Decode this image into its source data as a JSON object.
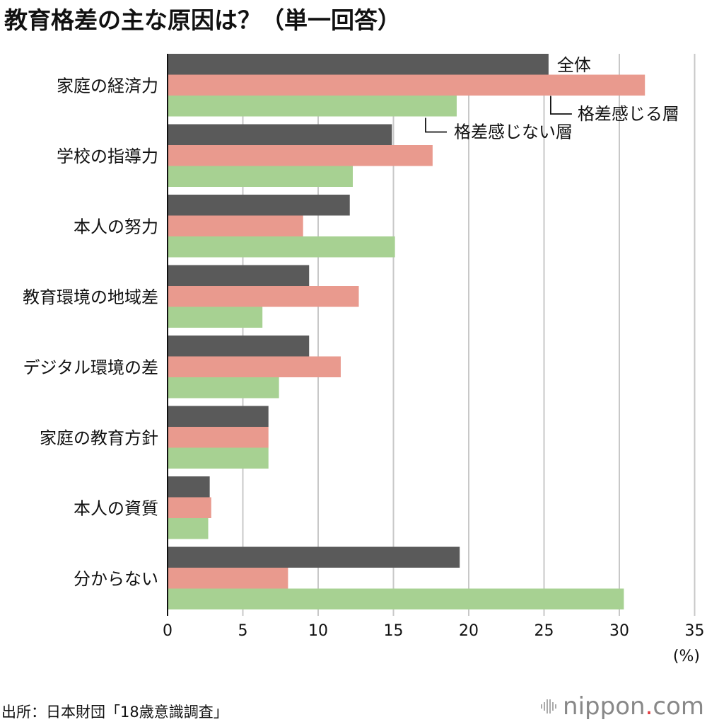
{
  "title": "教育格差の主な原因は？（単一回答）",
  "source": "出所：日本財団「18歳意識調査」",
  "logo": {
    "main": "nippon",
    "dot": ".",
    "com": "com",
    "icon": "sound-wave-icon"
  },
  "colors": {
    "overall": "#5a5a5a",
    "feel_gap": "#e99a8e",
    "no_gap": "#a7d192",
    "grid": "#c8c8c8",
    "axis": "#111111"
  },
  "chart_data": {
    "type": "bar",
    "orientation": "horizontal",
    "categories": [
      "家庭の経済力",
      "学校の指導力",
      "本人の努力",
      "教育環境の地域差",
      "デジタル環境の差",
      "家庭の教育方針",
      "本人の資質",
      "分からない"
    ],
    "series": [
      {
        "name": "全体",
        "values": [
          25.3,
          14.9,
          12.1,
          9.4,
          9.4,
          6.7,
          2.8,
          19.4
        ]
      },
      {
        "name": "格差感じる層",
        "values": [
          31.7,
          17.6,
          9.0,
          12.7,
          11.5,
          6.7,
          2.9,
          8.0
        ]
      },
      {
        "name": "格差感じない層",
        "values": [
          19.2,
          12.3,
          15.1,
          6.3,
          7.4,
          6.7,
          2.7,
          30.3
        ]
      }
    ],
    "xlim": [
      0,
      35
    ],
    "xticks": [
      "0",
      "5",
      "10",
      "15",
      "20",
      "25",
      "30",
      "35"
    ],
    "xunit": "(%)",
    "grid": true,
    "legend": "inline-callouts"
  }
}
